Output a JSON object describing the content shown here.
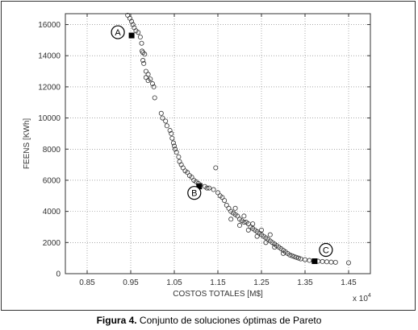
{
  "caption": {
    "label": "Figura 4.",
    "text": " Conjunto de soluciones óptimas de Pareto"
  },
  "chart_data": {
    "type": "scatter",
    "xlabel": "COSTOS TOTALES [M$]",
    "ylabel": "FEENS [KWh]",
    "x_multiplier": "x 10^4",
    "x_multiplier_base": "x 10",
    "x_multiplier_exp": "4",
    "xlim": [
      0.8,
      1.5
    ],
    "ylim": [
      0,
      16700
    ],
    "x_ticks": [
      0.85,
      0.95,
      1.05,
      1.15,
      1.25,
      1.35,
      1.45
    ],
    "x_tick_labels": [
      "0.85",
      "0.95",
      "1.05",
      "1.15",
      "1.25",
      "1.35",
      "1.45"
    ],
    "y_ticks": [
      0,
      2000,
      4000,
      6000,
      8000,
      10000,
      12000,
      14000,
      16000
    ],
    "y_tick_labels": [
      "0",
      "2000",
      "4000",
      "6000",
      "8000",
      "10000",
      "12000",
      "14000",
      "16000"
    ],
    "grid": true,
    "series": [
      {
        "marker": "open-circle",
        "color": "#333333",
        "points": [
          [
            0.943,
            16600
          ],
          [
            0.948,
            16400
          ],
          [
            0.952,
            16200
          ],
          [
            0.955,
            16000
          ],
          [
            0.958,
            15800
          ],
          [
            0.962,
            15600
          ],
          [
            0.967,
            15500
          ],
          [
            0.972,
            15200
          ],
          [
            0.975,
            14800
          ],
          [
            0.976,
            14300
          ],
          [
            0.978,
            14200
          ],
          [
            0.982,
            14100
          ],
          [
            0.978,
            13700
          ],
          [
            0.98,
            13500
          ],
          [
            0.985,
            13000
          ],
          [
            0.99,
            12800
          ],
          [
            0.985,
            12600
          ],
          [
            0.99,
            12400
          ],
          [
            0.995,
            12500
          ],
          [
            1.0,
            12200
          ],
          [
            1.003,
            12000
          ],
          [
            1.005,
            11300
          ],
          [
            1.02,
            10300
          ],
          [
            1.023,
            10000
          ],
          [
            1.03,
            9800
          ],
          [
            1.033,
            9500
          ],
          [
            1.04,
            9200
          ],
          [
            1.043,
            9000
          ],
          [
            1.045,
            8700
          ],
          [
            1.048,
            8400
          ],
          [
            1.05,
            8200
          ],
          [
            1.052,
            8000
          ],
          [
            1.055,
            7800
          ],
          [
            1.06,
            7500
          ],
          [
            1.062,
            7200
          ],
          [
            1.066,
            7000
          ],
          [
            1.07,
            6800
          ],
          [
            1.075,
            6600
          ],
          [
            1.08,
            6500
          ],
          [
            1.085,
            6300
          ],
          [
            1.09,
            6200
          ],
          [
            1.095,
            6000
          ],
          [
            1.1,
            5900
          ],
          [
            1.105,
            5800
          ],
          [
            1.11,
            5700
          ],
          [
            1.12,
            5600
          ],
          [
            1.125,
            5500
          ],
          [
            1.13,
            5500
          ],
          [
            1.14,
            5400
          ],
          [
            1.145,
            6800
          ],
          [
            1.15,
            5200
          ],
          [
            1.155,
            5000
          ],
          [
            1.16,
            4900
          ],
          [
            1.165,
            4700
          ],
          [
            1.17,
            4400
          ],
          [
            1.175,
            4200
          ],
          [
            1.18,
            4000
          ],
          [
            1.185,
            3900
          ],
          [
            1.19,
            3800
          ],
          [
            1.195,
            3700
          ],
          [
            1.2,
            3500
          ],
          [
            1.205,
            3400
          ],
          [
            1.21,
            3300
          ],
          [
            1.215,
            3300
          ],
          [
            1.22,
            3200
          ],
          [
            1.225,
            3000
          ],
          [
            1.23,
            2900
          ],
          [
            1.235,
            2800
          ],
          [
            1.24,
            2700
          ],
          [
            1.245,
            2600
          ],
          [
            1.25,
            2500
          ],
          [
            1.255,
            2400
          ],
          [
            1.26,
            2300
          ],
          [
            1.265,
            2200
          ],
          [
            1.27,
            2100
          ],
          [
            1.275,
            2000
          ],
          [
            1.28,
            1900
          ],
          [
            1.285,
            1800
          ],
          [
            1.29,
            1700
          ],
          [
            1.295,
            1600
          ],
          [
            1.3,
            1500
          ],
          [
            1.305,
            1400
          ],
          [
            1.31,
            1300
          ],
          [
            1.315,
            1200
          ],
          [
            1.32,
            1150
          ],
          [
            1.325,
            1100
          ],
          [
            1.33,
            1050
          ],
          [
            1.335,
            1000
          ],
          [
            1.34,
            950
          ],
          [
            1.35,
            900
          ],
          [
            1.36,
            850
          ],
          [
            1.37,
            800
          ],
          [
            1.38,
            800
          ],
          [
            1.39,
            780
          ],
          [
            1.4,
            760
          ],
          [
            1.41,
            740
          ],
          [
            1.42,
            730
          ],
          [
            1.45,
            700
          ],
          [
            1.18,
            3500
          ],
          [
            1.2,
            3100
          ],
          [
            1.22,
            2800
          ],
          [
            1.24,
            2400
          ],
          [
            1.26,
            2000
          ],
          [
            1.28,
            1700
          ],
          [
            1.3,
            1300
          ],
          [
            1.19,
            4200
          ],
          [
            1.21,
            3700
          ],
          [
            1.23,
            3200
          ],
          [
            1.25,
            2800
          ],
          [
            1.27,
            2500
          ]
        ]
      }
    ],
    "highlighted_points": [
      {
        "label": "A",
        "x": 0.952,
        "y": 15300
      },
      {
        "label": "B",
        "x": 1.107,
        "y": 5600
      },
      {
        "label": "C",
        "x": 1.372,
        "y": 800
      }
    ]
  }
}
